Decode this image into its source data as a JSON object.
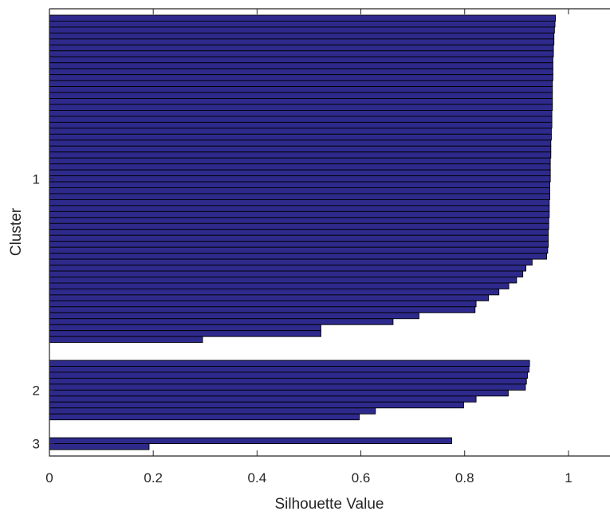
{
  "chart_data": {
    "type": "bar",
    "orientation": "horizontal",
    "title": "",
    "xlabel": "Silhouette Value",
    "ylabel": "Cluster",
    "xlim": [
      0,
      1.08
    ],
    "xticks": [
      0,
      0.2,
      0.4,
      0.6,
      0.8,
      1
    ],
    "xtick_labels": [
      "0",
      "0.2",
      "0.4",
      "0.6",
      "0.8",
      "1"
    ],
    "grid": false,
    "legend": "none",
    "bar_color": "#2e2a8c",
    "bar_edge_color": "#000000",
    "clusters": [
      {
        "label": "1",
        "values": [
          0.975,
          0.974,
          0.973,
          0.972,
          0.972,
          0.971,
          0.971,
          0.97,
          0.97,
          0.97,
          0.97,
          0.969,
          0.969,
          0.969,
          0.969,
          0.969,
          0.968,
          0.968,
          0.968,
          0.967,
          0.967,
          0.966,
          0.966,
          0.966,
          0.965,
          0.965,
          0.965,
          0.965,
          0.964,
          0.964,
          0.964,
          0.963,
          0.963,
          0.963,
          0.962,
          0.962,
          0.961,
          0.961,
          0.961,
          0.96,
          0.958,
          0.93,
          0.918,
          0.912,
          0.9,
          0.885,
          0.866,
          0.846,
          0.822,
          0.82,
          0.712,
          0.662,
          0.523,
          0.523,
          0.295
        ]
      },
      {
        "label": "2",
        "values": [
          0.925,
          0.924,
          0.921,
          0.919,
          0.917,
          0.884,
          0.822,
          0.798,
          0.628,
          0.597
        ]
      },
      {
        "label": "3",
        "values": [
          0.775,
          0.192
        ]
      }
    ]
  }
}
